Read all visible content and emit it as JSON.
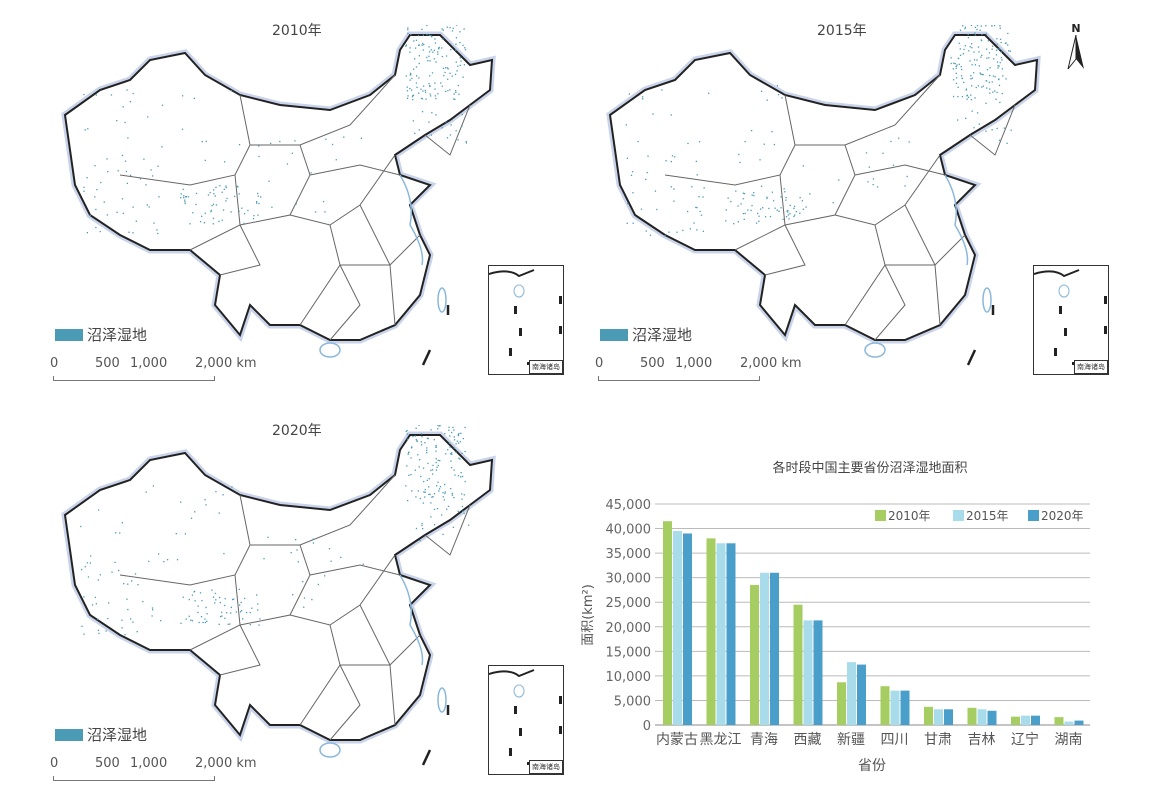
{
  "maps": [
    {
      "title": "2010年",
      "legend": "沼泽湿地",
      "scale": [
        "0",
        "500",
        "1,000",
        "2,000 km"
      ],
      "inset_label": "南海诸岛"
    },
    {
      "title": "2015年",
      "legend": "沼泽湿地",
      "scale": [
        "0",
        "500",
        "1,000",
        "2,000 km"
      ],
      "inset_label": "南海诸岛",
      "north": "N"
    },
    {
      "title": "2020年",
      "legend": "沼泽湿地",
      "scale": [
        "0",
        "500",
        "1,000",
        "2,000 km"
      ],
      "inset_label": "南海诸岛"
    }
  ],
  "colors": {
    "wetland": "#4b9bb5",
    "border": "#222",
    "province": "#666",
    "water": "#8ab8dc"
  },
  "chart_data": {
    "type": "bar",
    "title": "各时段中国主要省份沼泽湿地面积",
    "xlabel": "省份",
    "ylabel": "面积(km²)",
    "ylim": [
      0,
      45000
    ],
    "yticks": [
      "0",
      "5,000",
      "10,000",
      "15,000",
      "20,000",
      "25,000",
      "30,000",
      "35,000",
      "40,000",
      "45,000"
    ],
    "grid": true,
    "legend_position": "top-right",
    "categories": [
      "内蒙古",
      "黑龙江",
      "青海",
      "西藏",
      "新疆",
      "四川",
      "甘肃",
      "吉林",
      "辽宁",
      "湖南"
    ],
    "series": [
      {
        "name": "2010年",
        "color": "#a5cd62",
        "values": [
          41500,
          38000,
          28500,
          24500,
          8700,
          7900,
          3700,
          3500,
          1700,
          1600
        ]
      },
      {
        "name": "2015年",
        "color": "#a8dcea",
        "values": [
          39500,
          37000,
          31000,
          21300,
          12800,
          7000,
          3200,
          3200,
          1900,
          700
        ]
      },
      {
        "name": "2020年",
        "color": "#4a9fca",
        "values": [
          39000,
          37000,
          31000,
          21300,
          12300,
          7000,
          3200,
          2900,
          1900,
          900
        ]
      }
    ]
  }
}
